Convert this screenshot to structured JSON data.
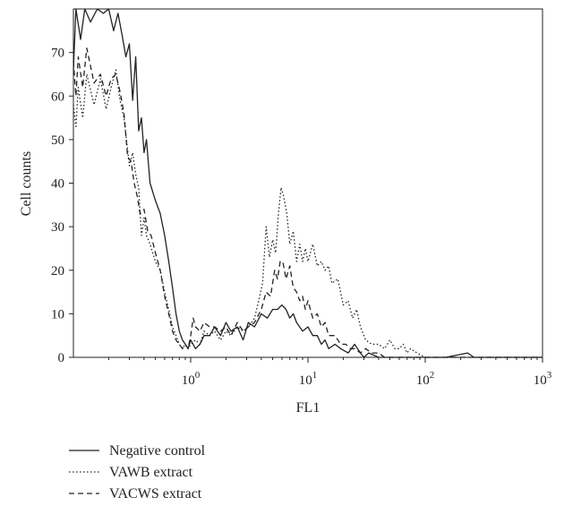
{
  "chart_data": {
    "type": "line",
    "xlabel": "FL1",
    "ylabel": "Cell counts",
    "x_scale": "log",
    "xlim": [
      0.1,
      1000
    ],
    "ylim": [
      0,
      80
    ],
    "x_tick_labels": [
      {
        "base": "10",
        "exp": "0",
        "value": 1
      },
      {
        "base": "10",
        "exp": "1",
        "value": 10
      },
      {
        "base": "10",
        "exp": "2",
        "value": 100
      },
      {
        "base": "10",
        "exp": "3",
        "value": 1000
      }
    ],
    "y_ticks": [
      0,
      10,
      20,
      30,
      40,
      50,
      60,
      70
    ],
    "grid": false,
    "legend_position": "bottom-left",
    "series": [
      {
        "name": "Negative control",
        "style": "solid",
        "color": "#222222",
        "points": [
          [
            0.1,
            66
          ],
          [
            0.105,
            80
          ],
          [
            0.115,
            73
          ],
          [
            0.125,
            80
          ],
          [
            0.14,
            77
          ],
          [
            0.16,
            80
          ],
          [
            0.18,
            79
          ],
          [
            0.2,
            80
          ],
          [
            0.22,
            75
          ],
          [
            0.24,
            79
          ],
          [
            0.26,
            74
          ],
          [
            0.28,
            69
          ],
          [
            0.3,
            72
          ],
          [
            0.32,
            59
          ],
          [
            0.34,
            69
          ],
          [
            0.36,
            52
          ],
          [
            0.38,
            55
          ],
          [
            0.4,
            47
          ],
          [
            0.42,
            50
          ],
          [
            0.45,
            40
          ],
          [
            0.5,
            36
          ],
          [
            0.55,
            33
          ],
          [
            0.6,
            28
          ],
          [
            0.65,
            22
          ],
          [
            0.7,
            16
          ],
          [
            0.75,
            10
          ],
          [
            0.8,
            6
          ],
          [
            0.85,
            4
          ],
          [
            0.9,
            3
          ],
          [
            0.95,
            2
          ],
          [
            1.0,
            4
          ],
          [
            1.1,
            2
          ],
          [
            1.2,
            3
          ],
          [
            1.3,
            5
          ],
          [
            1.45,
            5
          ],
          [
            1.6,
            7
          ],
          [
            1.8,
            5
          ],
          [
            2.0,
            8
          ],
          [
            2.2,
            6
          ],
          [
            2.5,
            7
          ],
          [
            2.8,
            4
          ],
          [
            3.1,
            8
          ],
          [
            3.5,
            7
          ],
          [
            4.0,
            10
          ],
          [
            4.5,
            9
          ],
          [
            5.0,
            11
          ],
          [
            5.5,
            11
          ],
          [
            6.0,
            12
          ],
          [
            6.5,
            11
          ],
          [
            7.0,
            9
          ],
          [
            7.5,
            10
          ],
          [
            8.0,
            8
          ],
          [
            9.0,
            6
          ],
          [
            10.0,
            7
          ],
          [
            11.0,
            5
          ],
          [
            12.0,
            5
          ],
          [
            13.0,
            3
          ],
          [
            14.0,
            4
          ],
          [
            15.0,
            2
          ],
          [
            17.0,
            3
          ],
          [
            19.0,
            2
          ],
          [
            22.0,
            1
          ],
          [
            25.0,
            3
          ],
          [
            28.0,
            1
          ],
          [
            30.0,
            0
          ],
          [
            33.0,
            1
          ],
          [
            40.0,
            0
          ],
          [
            60.0,
            0
          ],
          [
            100.0,
            0
          ],
          [
            150.0,
            0
          ],
          [
            230.0,
            1
          ],
          [
            260.0,
            0
          ],
          [
            500.0,
            0
          ],
          [
            1000.0,
            0
          ]
        ]
      },
      {
        "name": "VAWB extract",
        "style": "dotted",
        "color": "#222222",
        "points": [
          [
            0.1,
            58
          ],
          [
            0.105,
            53
          ],
          [
            0.11,
            62
          ],
          [
            0.12,
            55
          ],
          [
            0.13,
            65
          ],
          [
            0.15,
            58
          ],
          [
            0.17,
            64
          ],
          [
            0.19,
            57
          ],
          [
            0.21,
            62
          ],
          [
            0.23,
            66
          ],
          [
            0.25,
            59
          ],
          [
            0.27,
            55
          ],
          [
            0.3,
            44
          ],
          [
            0.32,
            47
          ],
          [
            0.34,
            42
          ],
          [
            0.36,
            39
          ],
          [
            0.38,
            28
          ],
          [
            0.4,
            32
          ],
          [
            0.42,
            28
          ],
          [
            0.45,
            26
          ],
          [
            0.5,
            22
          ],
          [
            0.55,
            20
          ],
          [
            0.6,
            15
          ],
          [
            0.65,
            11
          ],
          [
            0.7,
            7
          ],
          [
            0.75,
            5
          ],
          [
            0.8,
            3
          ],
          [
            0.85,
            2
          ],
          [
            0.9,
            3
          ],
          [
            0.95,
            2
          ],
          [
            1.0,
            3
          ],
          [
            1.1,
            4
          ],
          [
            1.2,
            3
          ],
          [
            1.3,
            6
          ],
          [
            1.45,
            5
          ],
          [
            1.6,
            6
          ],
          [
            1.8,
            4
          ],
          [
            2.0,
            6
          ],
          [
            2.2,
            5
          ],
          [
            2.5,
            7
          ],
          [
            2.8,
            6
          ],
          [
            3.1,
            7
          ],
          [
            3.5,
            9
          ],
          [
            3.8,
            13
          ],
          [
            4.1,
            17
          ],
          [
            4.4,
            30
          ],
          [
            4.7,
            23
          ],
          [
            5.0,
            27
          ],
          [
            5.3,
            24
          ],
          [
            5.6,
            33
          ],
          [
            5.9,
            39
          ],
          [
            6.2,
            37
          ],
          [
            6.6,
            33
          ],
          [
            7.0,
            26
          ],
          [
            7.5,
            29
          ],
          [
            8.0,
            22
          ],
          [
            8.5,
            26
          ],
          [
            9.0,
            22
          ],
          [
            9.5,
            25
          ],
          [
            10.0,
            22
          ],
          [
            11.0,
            26
          ],
          [
            12.0,
            21
          ],
          [
            13.0,
            22
          ],
          [
            14.0,
            20
          ],
          [
            15.0,
            21
          ],
          [
            16.0,
            17
          ],
          [
            18.0,
            18
          ],
          [
            20.0,
            12
          ],
          [
            22.0,
            13
          ],
          [
            24.0,
            9
          ],
          [
            26.0,
            11
          ],
          [
            28.0,
            7
          ],
          [
            31.0,
            4
          ],
          [
            35.0,
            3
          ],
          [
            40.0,
            3
          ],
          [
            45.0,
            2
          ],
          [
            50.0,
            4
          ],
          [
            55.0,
            2
          ],
          [
            60.0,
            2
          ],
          [
            65.0,
            3
          ],
          [
            70.0,
            1
          ],
          [
            75.0,
            2
          ],
          [
            85.0,
            1
          ],
          [
            100.0,
            0
          ],
          [
            130.0,
            0
          ],
          [
            200.0,
            0
          ],
          [
            300.0,
            0
          ],
          [
            1000.0,
            0
          ]
        ]
      },
      {
        "name": "VACWS extract",
        "style": "dashed",
        "color": "#222222",
        "points": [
          [
            0.1,
            68
          ],
          [
            0.105,
            60
          ],
          [
            0.11,
            69
          ],
          [
            0.12,
            62
          ],
          [
            0.13,
            71
          ],
          [
            0.15,
            63
          ],
          [
            0.17,
            65
          ],
          [
            0.19,
            60
          ],
          [
            0.21,
            64
          ],
          [
            0.23,
            65
          ],
          [
            0.25,
            61
          ],
          [
            0.27,
            56
          ],
          [
            0.29,
            46
          ],
          [
            0.31,
            45
          ],
          [
            0.33,
            40
          ],
          [
            0.35,
            37
          ],
          [
            0.37,
            33
          ],
          [
            0.4,
            34
          ],
          [
            0.43,
            29
          ],
          [
            0.46,
            28
          ],
          [
            0.5,
            24
          ],
          [
            0.55,
            20
          ],
          [
            0.6,
            14
          ],
          [
            0.65,
            10
          ],
          [
            0.7,
            6
          ],
          [
            0.75,
            4
          ],
          [
            0.8,
            3
          ],
          [
            0.85,
            2
          ],
          [
            0.9,
            3
          ],
          [
            0.95,
            2
          ],
          [
            1.0,
            5
          ],
          [
            1.05,
            9
          ],
          [
            1.1,
            7
          ],
          [
            1.2,
            6
          ],
          [
            1.3,
            8
          ],
          [
            1.45,
            7
          ],
          [
            1.6,
            7
          ],
          [
            1.8,
            6
          ],
          [
            2.0,
            7
          ],
          [
            2.2,
            5
          ],
          [
            2.5,
            8
          ],
          [
            2.8,
            6
          ],
          [
            3.1,
            7
          ],
          [
            3.5,
            8
          ],
          [
            4.0,
            11
          ],
          [
            4.4,
            15
          ],
          [
            4.8,
            14
          ],
          [
            5.2,
            20
          ],
          [
            5.5,
            18
          ],
          [
            5.8,
            22
          ],
          [
            6.1,
            22
          ],
          [
            6.5,
            18
          ],
          [
            7.0,
            21
          ],
          [
            7.5,
            16
          ],
          [
            8.0,
            15
          ],
          [
            8.5,
            13
          ],
          [
            9.0,
            14
          ],
          [
            9.5,
            11
          ],
          [
            10.0,
            13
          ],
          [
            11.0,
            9
          ],
          [
            12.0,
            10
          ],
          [
            13.0,
            7
          ],
          [
            14.0,
            8
          ],
          [
            15.0,
            5
          ],
          [
            17.0,
            5
          ],
          [
            19.0,
            3
          ],
          [
            21.0,
            3
          ],
          [
            23.0,
            2
          ],
          [
            25.0,
            2
          ],
          [
            28.0,
            1
          ],
          [
            31.0,
            2
          ],
          [
            35.0,
            1
          ],
          [
            40.0,
            1
          ],
          [
            45.0,
            0
          ],
          [
            60.0,
            0
          ],
          [
            100.0,
            0
          ],
          [
            200.0,
            0
          ],
          [
            1000.0,
            0
          ]
        ]
      }
    ]
  }
}
